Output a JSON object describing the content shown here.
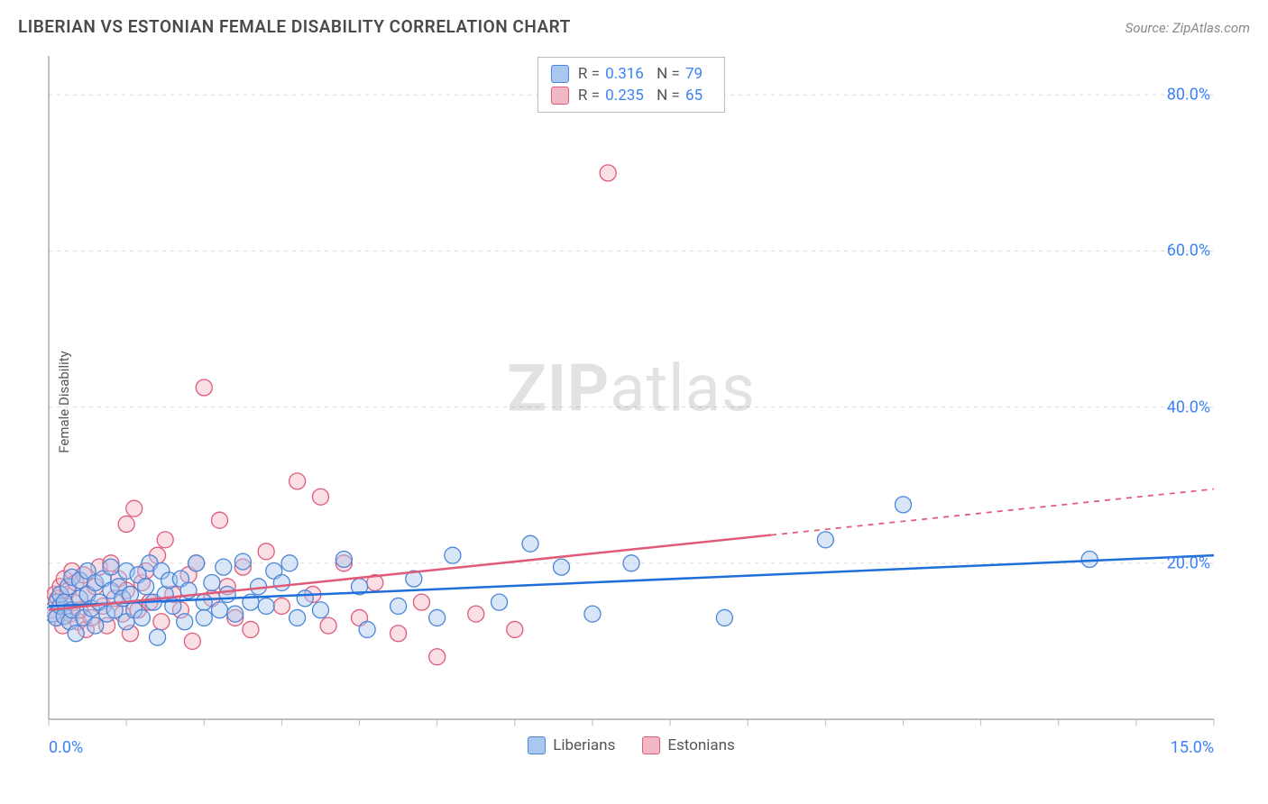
{
  "header": {
    "title": "LIBERIAN VS ESTONIAN FEMALE DISABILITY CORRELATION CHART",
    "source": "Source: ZipAtlas.com"
  },
  "ylabel": "Female Disability",
  "watermark": {
    "zip": "ZIP",
    "rest": "atlas"
  },
  "chart": {
    "type": "scatter",
    "background_color": "#ffffff",
    "grid_color": "#d9d9d9",
    "axis_color": "#999999",
    "tick_color": "#bbbbbb",
    "xlim": [
      0,
      15
    ],
    "ylim": [
      0,
      85
    ],
    "x_ticks_minor": [
      0,
      1,
      2,
      3,
      4,
      5,
      6,
      7,
      8,
      9,
      10,
      11,
      12,
      13,
      14,
      15
    ],
    "y_gridlines": [
      20,
      40,
      60,
      80
    ],
    "x_axis_labels": {
      "min": "0.0%",
      "max": "15.0%"
    },
    "y_axis_labels": [
      {
        "value": 20,
        "label": "20.0%"
      },
      {
        "value": 40,
        "label": "40.0%"
      },
      {
        "value": 60,
        "label": "60.0%"
      },
      {
        "value": 80,
        "label": "80.0%"
      }
    ],
    "marker": {
      "radius": 9,
      "stroke_width": 1.3,
      "fill_opacity": 0.45
    },
    "trend_line_width": 2.5,
    "legend_bottom": [
      {
        "label": "Liberians",
        "fill": "#a8c8f0",
        "stroke": "#4a86d8"
      },
      {
        "label": "Estonians",
        "fill": "#f3b8c6",
        "stroke": "#e05a7a"
      }
    ],
    "series": [
      {
        "name": "Liberians",
        "fill": "#a8c8f0",
        "stroke": "#4a86d8",
        "trend_color": "#1e6fd9",
        "trend_solid_end_x": 15,
        "stats": {
          "R": "0.316",
          "N": "79"
        },
        "trend": {
          "x1": 0,
          "y1": 14.5,
          "x2": 15,
          "y2": 21.0
        },
        "points": [
          [
            0.05,
            13.5
          ],
          [
            0.1,
            15
          ],
          [
            0.1,
            13
          ],
          [
            0.15,
            14.5
          ],
          [
            0.15,
            16
          ],
          [
            0.2,
            15
          ],
          [
            0.2,
            13.2
          ],
          [
            0.25,
            17
          ],
          [
            0.27,
            12.5
          ],
          [
            0.3,
            14
          ],
          [
            0.3,
            18.2
          ],
          [
            0.35,
            11
          ],
          [
            0.4,
            15.5
          ],
          [
            0.4,
            17.8
          ],
          [
            0.45,
            13
          ],
          [
            0.5,
            16
          ],
          [
            0.5,
            19
          ],
          [
            0.55,
            14.2
          ],
          [
            0.6,
            17.5
          ],
          [
            0.6,
            12
          ],
          [
            0.65,
            15
          ],
          [
            0.7,
            18
          ],
          [
            0.75,
            13.5
          ],
          [
            0.8,
            16.5
          ],
          [
            0.8,
            19.5
          ],
          [
            0.85,
            14
          ],
          [
            0.9,
            17
          ],
          [
            0.95,
            15.5
          ],
          [
            1.0,
            19
          ],
          [
            1.0,
            12.5
          ],
          [
            1.05,
            16
          ],
          [
            1.1,
            14
          ],
          [
            1.15,
            18.5
          ],
          [
            1.2,
            13
          ],
          [
            1.25,
            17
          ],
          [
            1.3,
            20
          ],
          [
            1.35,
            15
          ],
          [
            1.4,
            10.5
          ],
          [
            1.45,
            19
          ],
          [
            1.5,
            16
          ],
          [
            1.55,
            17.8
          ],
          [
            1.6,
            14.5
          ],
          [
            1.7,
            18
          ],
          [
            1.75,
            12.5
          ],
          [
            1.8,
            16.5
          ],
          [
            1.9,
            20
          ],
          [
            2.0,
            15
          ],
          [
            2.0,
            13
          ],
          [
            2.1,
            17.5
          ],
          [
            2.2,
            14
          ],
          [
            2.25,
            19.5
          ],
          [
            2.3,
            16
          ],
          [
            2.4,
            13.5
          ],
          [
            2.5,
            20.2
          ],
          [
            2.6,
            15
          ],
          [
            2.7,
            17
          ],
          [
            2.8,
            14.5
          ],
          [
            2.9,
            19
          ],
          [
            3.0,
            17.5
          ],
          [
            3.1,
            20
          ],
          [
            3.2,
            13
          ],
          [
            3.3,
            15.5
          ],
          [
            3.5,
            14
          ],
          [
            3.8,
            20.5
          ],
          [
            4.0,
            17
          ],
          [
            4.1,
            11.5
          ],
          [
            4.5,
            14.5
          ],
          [
            4.7,
            18
          ],
          [
            5.0,
            13
          ],
          [
            5.2,
            21
          ],
          [
            5.8,
            15
          ],
          [
            6.2,
            22.5
          ],
          [
            6.6,
            19.5
          ],
          [
            7.0,
            13.5
          ],
          [
            7.5,
            20
          ],
          [
            8.7,
            13
          ],
          [
            10.0,
            23
          ],
          [
            11.0,
            27.5
          ],
          [
            13.4,
            20.5
          ]
        ]
      },
      {
        "name": "Estonians",
        "fill": "#f3b8c6",
        "stroke": "#e05a7a",
        "trend_color": "#e05a7a",
        "trend_solid_end_x": 9.3,
        "stats": {
          "R": "0.235",
          "N": "65"
        },
        "trend": {
          "x1": 0,
          "y1": 14.0,
          "x2": 15,
          "y2": 29.5
        },
        "points": [
          [
            0.05,
            14
          ],
          [
            0.08,
            16
          ],
          [
            0.1,
            13
          ],
          [
            0.12,
            15.5
          ],
          [
            0.15,
            17
          ],
          [
            0.18,
            12
          ],
          [
            0.2,
            18
          ],
          [
            0.22,
            14.5
          ],
          [
            0.25,
            16.5
          ],
          [
            0.28,
            13.5
          ],
          [
            0.3,
            19
          ],
          [
            0.32,
            15
          ],
          [
            0.35,
            17.5
          ],
          [
            0.38,
            12.5
          ],
          [
            0.4,
            14
          ],
          [
            0.45,
            18.5
          ],
          [
            0.48,
            11.5
          ],
          [
            0.5,
            16
          ],
          [
            0.55,
            13
          ],
          [
            0.6,
            17
          ],
          [
            0.65,
            19.5
          ],
          [
            0.7,
            14.5
          ],
          [
            0.75,
            12
          ],
          [
            0.8,
            20
          ],
          [
            0.85,
            15.5
          ],
          [
            0.9,
            18
          ],
          [
            0.95,
            13.5
          ],
          [
            1.0,
            25
          ],
          [
            1.0,
            16.5
          ],
          [
            1.05,
            11
          ],
          [
            1.1,
            27
          ],
          [
            1.15,
            14
          ],
          [
            1.2,
            17.5
          ],
          [
            1.25,
            19
          ],
          [
            1.3,
            15
          ],
          [
            1.4,
            21
          ],
          [
            1.45,
            12.5
          ],
          [
            1.5,
            23
          ],
          [
            1.6,
            16
          ],
          [
            1.7,
            14
          ],
          [
            1.8,
            18.5
          ],
          [
            1.85,
            10
          ],
          [
            1.9,
            20
          ],
          [
            2.0,
            42.5
          ],
          [
            2.1,
            15.5
          ],
          [
            2.2,
            25.5
          ],
          [
            2.3,
            17
          ],
          [
            2.4,
            13
          ],
          [
            2.5,
            19.5
          ],
          [
            2.6,
            11.5
          ],
          [
            2.8,
            21.5
          ],
          [
            3.0,
            14.5
          ],
          [
            3.2,
            30.5
          ],
          [
            3.4,
            16
          ],
          [
            3.5,
            28.5
          ],
          [
            3.6,
            12
          ],
          [
            3.8,
            20
          ],
          [
            4.0,
            13
          ],
          [
            4.2,
            17.5
          ],
          [
            4.5,
            11
          ],
          [
            4.8,
            15
          ],
          [
            5.0,
            8
          ],
          [
            5.5,
            13.5
          ],
          [
            6.0,
            11.5
          ],
          [
            7.2,
            70
          ]
        ]
      }
    ]
  }
}
